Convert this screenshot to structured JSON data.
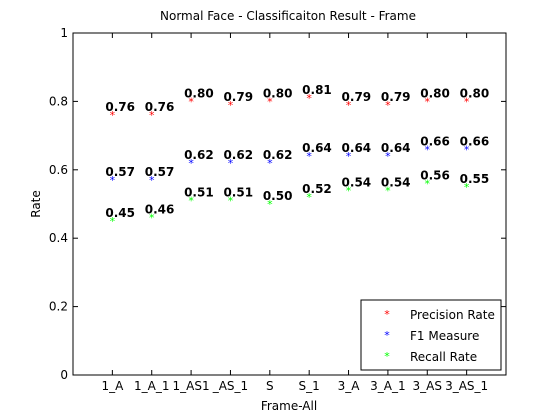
{
  "chart_data": {
    "type": "scatter",
    "title": "Normal Face - Classificaiton Result - Frame",
    "xlabel": "Frame-All",
    "ylabel": "Rate",
    "ylim": [
      0,
      1
    ],
    "yticks": [
      "0",
      "0.2",
      "0.4",
      "0.6",
      "0.8",
      "1"
    ],
    "categories": [
      "1_A",
      "1_A_1",
      "1_AS1",
      "_AS_1",
      "S",
      "S_1",
      "3_A",
      "3_A_1",
      "3_AS",
      "3_AS_1"
    ],
    "legend_position": "bottom-right",
    "marker": "*",
    "series": [
      {
        "name": "Precision Rate",
        "color": "#ff0000",
        "values": [
          0.76,
          0.76,
          0.8,
          0.79,
          0.8,
          0.81,
          0.79,
          0.79,
          0.8,
          0.8
        ],
        "labels": [
          "0.76",
          "0.76",
          "0.80",
          "0.79",
          "0.80",
          "0.81",
          "0.79",
          "0.79",
          "0.80",
          "0.80"
        ]
      },
      {
        "name": "F1 Measure",
        "color": "#0000ff",
        "values": [
          0.57,
          0.57,
          0.62,
          0.62,
          0.62,
          0.64,
          0.64,
          0.64,
          0.66,
          0.66
        ],
        "labels": [
          "0.57",
          "0.57",
          "0.62",
          "0.62",
          "0.62",
          "0.64",
          "0.64",
          "0.64",
          "0.66",
          "0.66"
        ]
      },
      {
        "name": "Recall Rate",
        "color": "#00ff00",
        "values": [
          0.45,
          0.46,
          0.51,
          0.51,
          0.5,
          0.52,
          0.54,
          0.54,
          0.56,
          0.55
        ],
        "labels": [
          "0.45",
          "0.46",
          "0.51",
          "0.51",
          "0.50",
          "0.52",
          "0.54",
          "0.54",
          "0.56",
          "0.55"
        ]
      }
    ]
  }
}
